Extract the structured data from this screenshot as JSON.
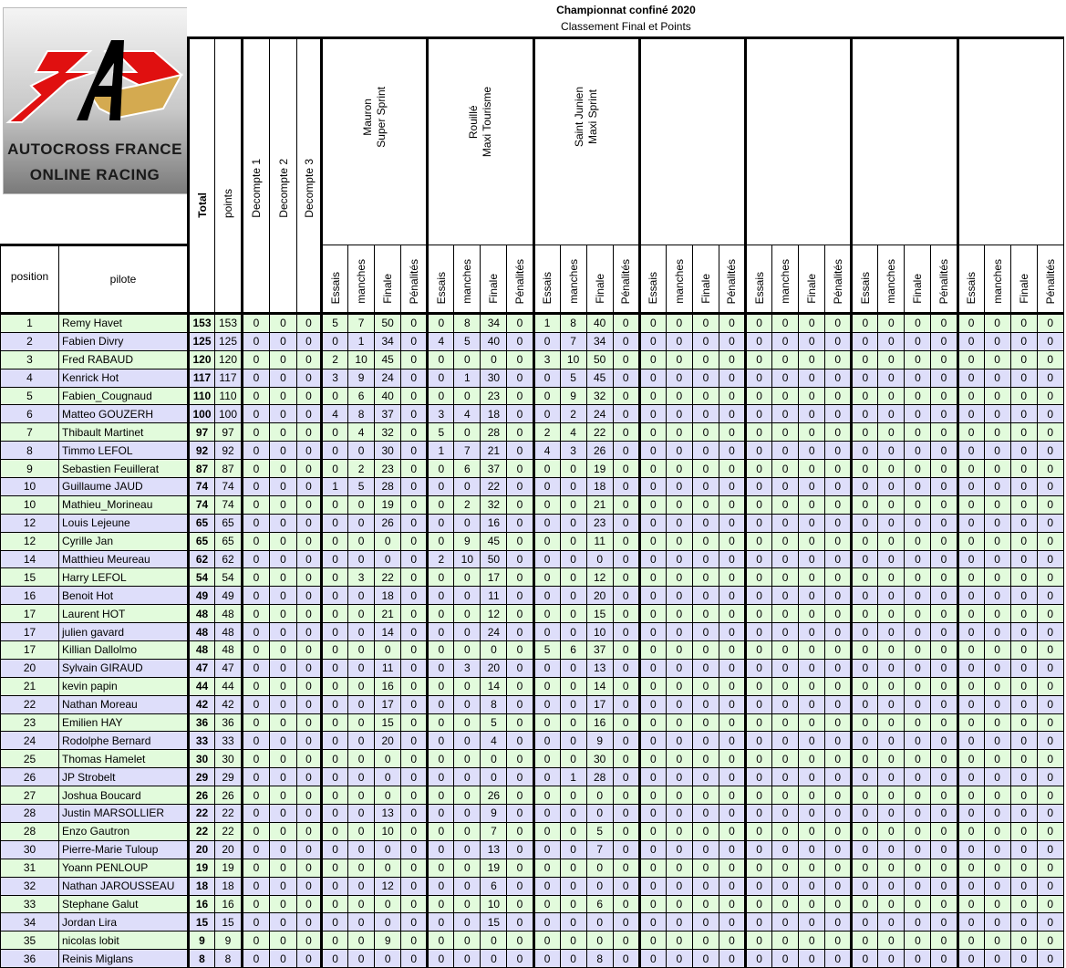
{
  "header": {
    "title": "Championnat confiné 2020",
    "subtitle": "Classement Final et Points"
  },
  "logo": {
    "line1": "AUTOCROSS FRANCE",
    "line2": "ONLINE RACING",
    "colors": {
      "red": "#e01010",
      "gold": "#d4aa50",
      "black": "#000000"
    }
  },
  "columns": {
    "position": "position",
    "pilote": "pilote",
    "total": "Total",
    "points": "points",
    "decomptes": [
      "Decompte 1",
      "Decompte 2",
      "Decompte 3"
    ],
    "sub": [
      "Essais",
      "manches",
      "Finale",
      "Pénalités"
    ]
  },
  "events": [
    {
      "line1": "Mauron",
      "line2": "Super Sprint"
    },
    {
      "line1": "Rouillé",
      "line2": "Maxi Tourisme"
    },
    {
      "line1": "Saint Junien",
      "line2": "Maxi Sprint"
    },
    {
      "line1": "",
      "line2": ""
    },
    {
      "line1": "",
      "line2": ""
    },
    {
      "line1": "",
      "line2": ""
    },
    {
      "line1": "",
      "line2": ""
    }
  ],
  "row_colors": [
    "#e2fbdc",
    "#dedefa"
  ],
  "rows": [
    {
      "position": "1",
      "pilote": "Remy Havet",
      "total": 153,
      "points": 153,
      "decomptes": [
        0,
        0,
        0
      ],
      "scores": [
        5,
        7,
        50,
        0,
        0,
        8,
        34,
        0,
        1,
        8,
        40,
        0,
        0,
        0,
        0,
        0,
        0,
        0,
        0,
        0,
        0,
        0,
        0,
        0,
        0,
        0,
        0,
        0
      ]
    },
    {
      "position": "2",
      "pilote": "Fabien Divry",
      "total": 125,
      "points": 125,
      "decomptes": [
        0,
        0,
        0
      ],
      "scores": [
        0,
        1,
        34,
        0,
        4,
        5,
        40,
        0,
        0,
        7,
        34,
        0,
        0,
        0,
        0,
        0,
        0,
        0,
        0,
        0,
        0,
        0,
        0,
        0,
        0,
        0,
        0,
        0
      ]
    },
    {
      "position": "3",
      "pilote": "Fred RABAUD",
      "total": 120,
      "points": 120,
      "decomptes": [
        0,
        0,
        0
      ],
      "scores": [
        2,
        10,
        45,
        0,
        0,
        0,
        0,
        0,
        3,
        10,
        50,
        0,
        0,
        0,
        0,
        0,
        0,
        0,
        0,
        0,
        0,
        0,
        0,
        0,
        0,
        0,
        0,
        0
      ]
    },
    {
      "position": "4",
      "pilote": "Kenrick Hot",
      "total": 117,
      "points": 117,
      "decomptes": [
        0,
        0,
        0
      ],
      "scores": [
        3,
        9,
        24,
        0,
        0,
        1,
        30,
        0,
        0,
        5,
        45,
        0,
        0,
        0,
        0,
        0,
        0,
        0,
        0,
        0,
        0,
        0,
        0,
        0,
        0,
        0,
        0,
        0
      ]
    },
    {
      "position": "5",
      "pilote": "Fabien_Cougnaud",
      "total": 110,
      "points": 110,
      "decomptes": [
        0,
        0,
        0
      ],
      "scores": [
        0,
        6,
        40,
        0,
        0,
        0,
        23,
        0,
        0,
        9,
        32,
        0,
        0,
        0,
        0,
        0,
        0,
        0,
        0,
        0,
        0,
        0,
        0,
        0,
        0,
        0,
        0,
        0
      ]
    },
    {
      "position": "6",
      "pilote": "Matteo GOUZERH",
      "total": 100,
      "points": 100,
      "decomptes": [
        0,
        0,
        0
      ],
      "scores": [
        4,
        8,
        37,
        0,
        3,
        4,
        18,
        0,
        0,
        2,
        24,
        0,
        0,
        0,
        0,
        0,
        0,
        0,
        0,
        0,
        0,
        0,
        0,
        0,
        0,
        0,
        0,
        0
      ]
    },
    {
      "position": "7",
      "pilote": "Thibault Martinet",
      "total": 97,
      "points": 97,
      "decomptes": [
        0,
        0,
        0
      ],
      "scores": [
        0,
        4,
        32,
        0,
        5,
        0,
        28,
        0,
        2,
        4,
        22,
        0,
        0,
        0,
        0,
        0,
        0,
        0,
        0,
        0,
        0,
        0,
        0,
        0,
        0,
        0,
        0,
        0
      ]
    },
    {
      "position": "8",
      "pilote": "Timmo LEFOL",
      "total": 92,
      "points": 92,
      "decomptes": [
        0,
        0,
        0
      ],
      "scores": [
        0,
        0,
        30,
        0,
        1,
        7,
        21,
        0,
        4,
        3,
        26,
        0,
        0,
        0,
        0,
        0,
        0,
        0,
        0,
        0,
        0,
        0,
        0,
        0,
        0,
        0,
        0,
        0
      ]
    },
    {
      "position": "9",
      "pilote": "Sebastien Feuillerat",
      "total": 87,
      "points": 87,
      "decomptes": [
        0,
        0,
        0
      ],
      "scores": [
        0,
        2,
        23,
        0,
        0,
        6,
        37,
        0,
        0,
        0,
        19,
        0,
        0,
        0,
        0,
        0,
        0,
        0,
        0,
        0,
        0,
        0,
        0,
        0,
        0,
        0,
        0,
        0
      ]
    },
    {
      "position": "10",
      "pilote": "Guillaume JAUD",
      "total": 74,
      "points": 74,
      "decomptes": [
        0,
        0,
        0
      ],
      "scores": [
        1,
        5,
        28,
        0,
        0,
        0,
        22,
        0,
        0,
        0,
        18,
        0,
        0,
        0,
        0,
        0,
        0,
        0,
        0,
        0,
        0,
        0,
        0,
        0,
        0,
        0,
        0,
        0
      ]
    },
    {
      "position": "10",
      "pilote": "Mathieu_Morineau",
      "total": 74,
      "points": 74,
      "decomptes": [
        0,
        0,
        0
      ],
      "scores": [
        0,
        0,
        19,
        0,
        0,
        2,
        32,
        0,
        0,
        0,
        21,
        0,
        0,
        0,
        0,
        0,
        0,
        0,
        0,
        0,
        0,
        0,
        0,
        0,
        0,
        0,
        0,
        0
      ]
    },
    {
      "position": "12",
      "pilote": "Louis Lejeune",
      "total": 65,
      "points": 65,
      "decomptes": [
        0,
        0,
        0
      ],
      "scores": [
        0,
        0,
        26,
        0,
        0,
        0,
        16,
        0,
        0,
        0,
        23,
        0,
        0,
        0,
        0,
        0,
        0,
        0,
        0,
        0,
        0,
        0,
        0,
        0,
        0,
        0,
        0,
        0
      ]
    },
    {
      "position": "12",
      "pilote": "Cyrille Jan",
      "total": 65,
      "points": 65,
      "decomptes": [
        0,
        0,
        0
      ],
      "scores": [
        0,
        0,
        0,
        0,
        0,
        9,
        45,
        0,
        0,
        0,
        11,
        0,
        0,
        0,
        0,
        0,
        0,
        0,
        0,
        0,
        0,
        0,
        0,
        0,
        0,
        0,
        0,
        0
      ]
    },
    {
      "position": "14",
      "pilote": "Matthieu Meureau",
      "total": 62,
      "points": 62,
      "decomptes": [
        0,
        0,
        0
      ],
      "scores": [
        0,
        0,
        0,
        0,
        2,
        10,
        50,
        0,
        0,
        0,
        0,
        0,
        0,
        0,
        0,
        0,
        0,
        0,
        0,
        0,
        0,
        0,
        0,
        0,
        0,
        0,
        0,
        0
      ]
    },
    {
      "position": "15",
      "pilote": "Harry LEFOL",
      "total": 54,
      "points": 54,
      "decomptes": [
        0,
        0,
        0
      ],
      "scores": [
        0,
        3,
        22,
        0,
        0,
        0,
        17,
        0,
        0,
        0,
        12,
        0,
        0,
        0,
        0,
        0,
        0,
        0,
        0,
        0,
        0,
        0,
        0,
        0,
        0,
        0,
        0,
        0
      ]
    },
    {
      "position": "16",
      "pilote": "Benoit Hot",
      "total": 49,
      "points": 49,
      "decomptes": [
        0,
        0,
        0
      ],
      "scores": [
        0,
        0,
        18,
        0,
        0,
        0,
        11,
        0,
        0,
        0,
        20,
        0,
        0,
        0,
        0,
        0,
        0,
        0,
        0,
        0,
        0,
        0,
        0,
        0,
        0,
        0,
        0,
        0
      ]
    },
    {
      "position": "17",
      "pilote": "Laurent HOT",
      "total": 48,
      "points": 48,
      "decomptes": [
        0,
        0,
        0
      ],
      "scores": [
        0,
        0,
        21,
        0,
        0,
        0,
        12,
        0,
        0,
        0,
        15,
        0,
        0,
        0,
        0,
        0,
        0,
        0,
        0,
        0,
        0,
        0,
        0,
        0,
        0,
        0,
        0,
        0
      ]
    },
    {
      "position": "17",
      "pilote": "julien gavard",
      "total": 48,
      "points": 48,
      "decomptes": [
        0,
        0,
        0
      ],
      "scores": [
        0,
        0,
        14,
        0,
        0,
        0,
        24,
        0,
        0,
        0,
        10,
        0,
        0,
        0,
        0,
        0,
        0,
        0,
        0,
        0,
        0,
        0,
        0,
        0,
        0,
        0,
        0,
        0
      ]
    },
    {
      "position": "17",
      "pilote": "Killian Dallolmo",
      "total": 48,
      "points": 48,
      "decomptes": [
        0,
        0,
        0
      ],
      "scores": [
        0,
        0,
        0,
        0,
        0,
        0,
        0,
        0,
        5,
        6,
        37,
        0,
        0,
        0,
        0,
        0,
        0,
        0,
        0,
        0,
        0,
        0,
        0,
        0,
        0,
        0,
        0,
        0
      ]
    },
    {
      "position": "20",
      "pilote": "Sylvain GIRAUD",
      "total": 47,
      "points": 47,
      "decomptes": [
        0,
        0,
        0
      ],
      "scores": [
        0,
        0,
        11,
        0,
        0,
        3,
        20,
        0,
        0,
        0,
        13,
        0,
        0,
        0,
        0,
        0,
        0,
        0,
        0,
        0,
        0,
        0,
        0,
        0,
        0,
        0,
        0,
        0
      ]
    },
    {
      "position": "21",
      "pilote": "kevin papin",
      "total": 44,
      "points": 44,
      "decomptes": [
        0,
        0,
        0
      ],
      "scores": [
        0,
        0,
        16,
        0,
        0,
        0,
        14,
        0,
        0,
        0,
        14,
        0,
        0,
        0,
        0,
        0,
        0,
        0,
        0,
        0,
        0,
        0,
        0,
        0,
        0,
        0,
        0,
        0
      ]
    },
    {
      "position": "22",
      "pilote": "Nathan Moreau",
      "total": 42,
      "points": 42,
      "decomptes": [
        0,
        0,
        0
      ],
      "scores": [
        0,
        0,
        17,
        0,
        0,
        0,
        8,
        0,
        0,
        0,
        17,
        0,
        0,
        0,
        0,
        0,
        0,
        0,
        0,
        0,
        0,
        0,
        0,
        0,
        0,
        0,
        0,
        0
      ]
    },
    {
      "position": "23",
      "pilote": "Emilien HAY",
      "total": 36,
      "points": 36,
      "decomptes": [
        0,
        0,
        0
      ],
      "scores": [
        0,
        0,
        15,
        0,
        0,
        0,
        5,
        0,
        0,
        0,
        16,
        0,
        0,
        0,
        0,
        0,
        0,
        0,
        0,
        0,
        0,
        0,
        0,
        0,
        0,
        0,
        0,
        0
      ]
    },
    {
      "position": "24",
      "pilote": "Rodolphe Bernard",
      "total": 33,
      "points": 33,
      "decomptes": [
        0,
        0,
        0
      ],
      "scores": [
        0,
        0,
        20,
        0,
        0,
        0,
        4,
        0,
        0,
        0,
        9,
        0,
        0,
        0,
        0,
        0,
        0,
        0,
        0,
        0,
        0,
        0,
        0,
        0,
        0,
        0,
        0,
        0
      ]
    },
    {
      "position": "25",
      "pilote": "Thomas Hamelet",
      "total": 30,
      "points": 30,
      "decomptes": [
        0,
        0,
        0
      ],
      "scores": [
        0,
        0,
        0,
        0,
        0,
        0,
        0,
        0,
        0,
        0,
        30,
        0,
        0,
        0,
        0,
        0,
        0,
        0,
        0,
        0,
        0,
        0,
        0,
        0,
        0,
        0,
        0,
        0
      ]
    },
    {
      "position": "26",
      "pilote": "JP Strobelt",
      "total": 29,
      "points": 29,
      "decomptes": [
        0,
        0,
        0
      ],
      "scores": [
        0,
        0,
        0,
        0,
        0,
        0,
        0,
        0,
        0,
        1,
        28,
        0,
        0,
        0,
        0,
        0,
        0,
        0,
        0,
        0,
        0,
        0,
        0,
        0,
        0,
        0,
        0,
        0
      ]
    },
    {
      "position": "27",
      "pilote": "Joshua Boucard",
      "total": 26,
      "points": 26,
      "decomptes": [
        0,
        0,
        0
      ],
      "scores": [
        0,
        0,
        0,
        0,
        0,
        0,
        26,
        0,
        0,
        0,
        0,
        0,
        0,
        0,
        0,
        0,
        0,
        0,
        0,
        0,
        0,
        0,
        0,
        0,
        0,
        0,
        0,
        0
      ]
    },
    {
      "position": "28",
      "pilote": "Justin MARSOLLIER",
      "total": 22,
      "points": 22,
      "decomptes": [
        0,
        0,
        0
      ],
      "scores": [
        0,
        0,
        13,
        0,
        0,
        0,
        9,
        0,
        0,
        0,
        0,
        0,
        0,
        0,
        0,
        0,
        0,
        0,
        0,
        0,
        0,
        0,
        0,
        0,
        0,
        0,
        0,
        0
      ]
    },
    {
      "position": "28",
      "pilote": "Enzo Gautron",
      "total": 22,
      "points": 22,
      "decomptes": [
        0,
        0,
        0
      ],
      "scores": [
        0,
        0,
        10,
        0,
        0,
        0,
        7,
        0,
        0,
        0,
        5,
        0,
        0,
        0,
        0,
        0,
        0,
        0,
        0,
        0,
        0,
        0,
        0,
        0,
        0,
        0,
        0,
        0
      ]
    },
    {
      "position": "30",
      "pilote": "Pierre-Marie Tuloup",
      "total": 20,
      "points": 20,
      "decomptes": [
        0,
        0,
        0
      ],
      "scores": [
        0,
        0,
        0,
        0,
        0,
        0,
        13,
        0,
        0,
        0,
        7,
        0,
        0,
        0,
        0,
        0,
        0,
        0,
        0,
        0,
        0,
        0,
        0,
        0,
        0,
        0,
        0,
        0
      ]
    },
    {
      "position": "31",
      "pilote": "Yoann PENLOUP",
      "total": 19,
      "points": 19,
      "decomptes": [
        0,
        0,
        0
      ],
      "scores": [
        0,
        0,
        0,
        0,
        0,
        0,
        19,
        0,
        0,
        0,
        0,
        0,
        0,
        0,
        0,
        0,
        0,
        0,
        0,
        0,
        0,
        0,
        0,
        0,
        0,
        0,
        0,
        0
      ]
    },
    {
      "position": "32",
      "pilote": "Nathan JAROUSSEAU",
      "total": 18,
      "points": 18,
      "decomptes": [
        0,
        0,
        0
      ],
      "scores": [
        0,
        0,
        12,
        0,
        0,
        0,
        6,
        0,
        0,
        0,
        0,
        0,
        0,
        0,
        0,
        0,
        0,
        0,
        0,
        0,
        0,
        0,
        0,
        0,
        0,
        0,
        0,
        0
      ]
    },
    {
      "position": "33",
      "pilote": "Stephane Galut",
      "total": 16,
      "points": 16,
      "decomptes": [
        0,
        0,
        0
      ],
      "scores": [
        0,
        0,
        0,
        0,
        0,
        0,
        10,
        0,
        0,
        0,
        6,
        0,
        0,
        0,
        0,
        0,
        0,
        0,
        0,
        0,
        0,
        0,
        0,
        0,
        0,
        0,
        0,
        0
      ]
    },
    {
      "position": "34",
      "pilote": "Jordan Lira",
      "total": 15,
      "points": 15,
      "decomptes": [
        0,
        0,
        0
      ],
      "scores": [
        0,
        0,
        0,
        0,
        0,
        0,
        15,
        0,
        0,
        0,
        0,
        0,
        0,
        0,
        0,
        0,
        0,
        0,
        0,
        0,
        0,
        0,
        0,
        0,
        0,
        0,
        0,
        0
      ]
    },
    {
      "position": "35",
      "pilote": "nicolas lobit",
      "total": 9,
      "points": 9,
      "decomptes": [
        0,
        0,
        0
      ],
      "scores": [
        0,
        0,
        9,
        0,
        0,
        0,
        0,
        0,
        0,
        0,
        0,
        0,
        0,
        0,
        0,
        0,
        0,
        0,
        0,
        0,
        0,
        0,
        0,
        0,
        0,
        0,
        0,
        0
      ]
    },
    {
      "position": "36",
      "pilote": "Reinis Miglans",
      "total": 8,
      "points": 8,
      "decomptes": [
        0,
        0,
        0
      ],
      "scores": [
        0,
        0,
        0,
        0,
        0,
        0,
        0,
        0,
        0,
        0,
        8,
        0,
        0,
        0,
        0,
        0,
        0,
        0,
        0,
        0,
        0,
        0,
        0,
        0,
        0,
        0,
        0,
        0
      ]
    }
  ]
}
